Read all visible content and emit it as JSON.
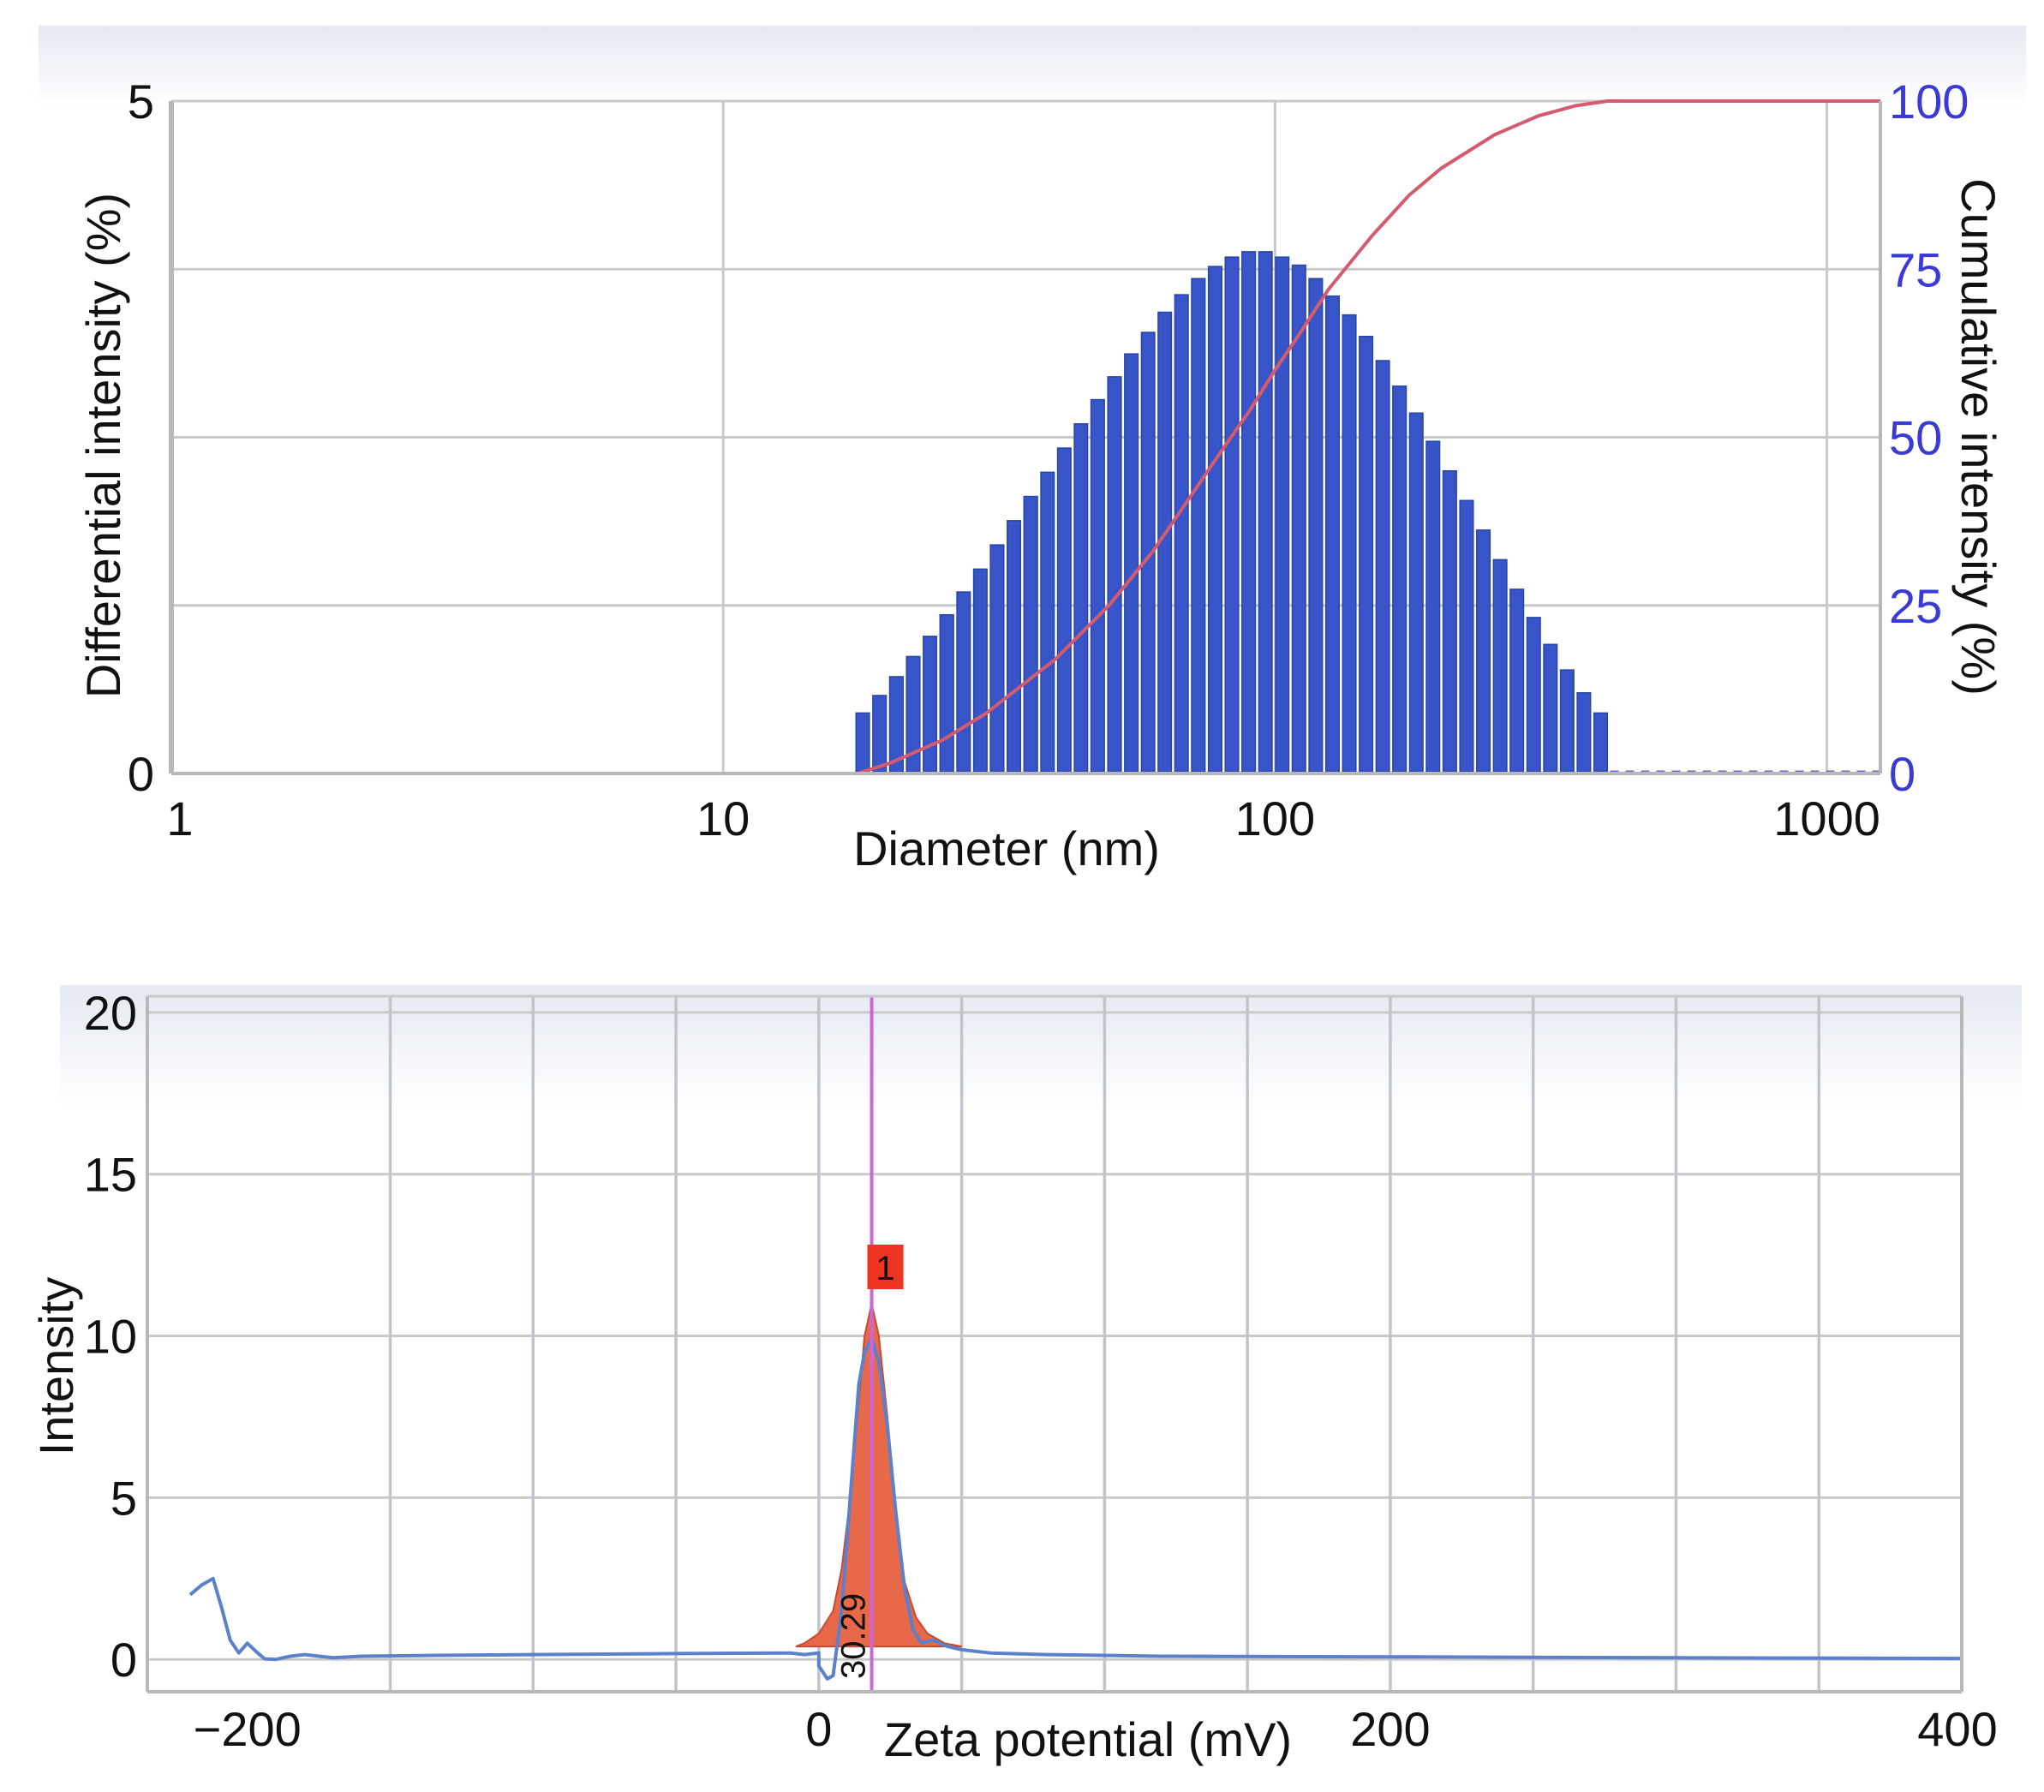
{
  "chart_data": [
    {
      "type": "bar",
      "xlabel": "Diameter (nm)",
      "ylabel": "Differential intensity (%)",
      "y2label": "Cumulative intensity (%)",
      "x_scale": "log",
      "xlim": [
        1,
        1250
      ],
      "ylim": [
        0,
        5
      ],
      "y2lim": [
        0,
        100
      ],
      "x_ticks": [
        "1",
        "10",
        "100",
        "1000"
      ],
      "x_tick_values": [
        1,
        10,
        100,
        1000
      ],
      "y_ticks": [
        "0",
        "5"
      ],
      "y_tick_values": [
        0,
        5
      ],
      "y_grid_values": [
        0,
        1.25,
        2.5,
        3.75,
        5
      ],
      "y2_ticks": [
        "0",
        "25",
        "50",
        "75",
        "100"
      ],
      "y2_tick_values": [
        0,
        25,
        50,
        75,
        100
      ],
      "grid": true,
      "bar_color": "#3755c8",
      "cumulative_color": "#d65a6e",
      "y2_tick_color": "#3a3ad6",
      "bars": {
        "x": [
          17.9,
          19.2,
          20.6,
          22.1,
          23.7,
          25.4,
          27.3,
          29.2,
          31.4,
          33.6,
          36.1,
          38.7,
          41.5,
          44.5,
          47.7,
          51.2,
          54.9,
          58.9,
          63.1,
          67.7,
          72.6,
          77.9,
          83.5,
          89.6,
          96.1,
          103.0,
          110.5,
          118.5,
          127.1,
          136.3,
          146.2,
          156.7,
          168.1,
          180.3,
          193.3,
          207.3,
          222.4,
          238.5,
          255.8,
          274.3,
          294.2,
          315.5,
          338.3,
          362.8,
          389.1
        ],
        "values": [
          0.45,
          0.58,
          0.72,
          0.87,
          1.02,
          1.18,
          1.35,
          1.52,
          1.7,
          1.88,
          2.06,
          2.24,
          2.42,
          2.6,
          2.78,
          2.95,
          3.12,
          3.28,
          3.43,
          3.56,
          3.68,
          3.77,
          3.84,
          3.88,
          3.88,
          3.84,
          3.78,
          3.68,
          3.55,
          3.41,
          3.25,
          3.07,
          2.88,
          2.68,
          2.47,
          2.25,
          2.03,
          1.81,
          1.59,
          1.37,
          1.16,
          0.96,
          0.77,
          0.6,
          0.45
        ]
      },
      "cumulative": {
        "x": [
          1,
          17.5,
          20,
          25,
          30,
          40,
          50,
          60,
          70,
          80,
          90,
          100,
          110,
          125,
          150,
          175,
          200,
          250,
          300,
          350,
          400,
          1250
        ],
        "values": [
          0,
          0,
          1.5,
          5,
          9,
          17,
          25,
          33,
          41,
          48,
          54,
          60,
          65,
          72,
          80,
          86,
          90,
          95,
          97.8,
          99.3,
          100,
          100
        ]
      }
    },
    {
      "type": "line",
      "xlabel": "Zeta potential (mV)",
      "ylabel": "Intensity",
      "xlim": [
        -235,
        400
      ],
      "ylim": [
        -1,
        20.5
      ],
      "x_ticks": [
        "−200",
        "0",
        "200",
        "400"
      ],
      "x_tick_values": [
        -200,
        0,
        200,
        400
      ],
      "x_grid_values": [
        -150,
        -100,
        -50,
        0,
        50,
        100,
        150,
        200,
        250,
        300,
        350
      ],
      "y_ticks": [
        "0",
        "5",
        "10",
        "15",
        "20"
      ],
      "y_tick_values": [
        0,
        5,
        10,
        15,
        20
      ],
      "grid": true,
      "line_color": "#5b80cc",
      "peak_fill_color": "#e8694a",
      "marker_line_color": "#cc66dd",
      "badge_color": "#ee3322",
      "peak_marker_x": 18.5,
      "peak_label": "1",
      "peak_value_label": "30.29",
      "series": [
        {
          "x": [
            -220,
            -216,
            -212,
            -209,
            -206,
            -203,
            -200,
            -197,
            -194,
            -190,
            -185,
            -180,
            -170,
            -160,
            -140,
            -100,
            -50,
            0,
            -10,
            -5,
            0,
            3,
            5,
            8,
            11,
            14,
            16,
            18.5,
            21,
            24,
            27,
            30,
            33,
            36,
            40,
            45,
            50,
            60,
            80,
            120,
            200,
            300,
            400
          ],
          "values": [
            2.0,
            2.3,
            2.5,
            1.6,
            0.6,
            0.2,
            0.5,
            0.25,
            0.02,
            0.0,
            0.1,
            0.15,
            0.05,
            0.1,
            0.12,
            0.15,
            0.18,
            0.2,
            0.2,
            0.15,
            -0.2,
            -0.6,
            -0.5,
            1.5,
            5.0,
            8.5,
            9.5,
            9.9,
            9.2,
            7.2,
            4.5,
            2.2,
            0.9,
            0.5,
            0.6,
            0.4,
            0.3,
            0.2,
            0.15,
            0.1,
            0.08,
            0.05,
            0.03
          ]
        }
      ],
      "peak_fill": {
        "x": [
          -8,
          -5,
          0,
          5,
          8,
          11,
          14,
          16,
          18.5,
          21,
          24,
          27,
          30,
          34,
          38,
          44,
          50
        ],
        "values": [
          0.4,
          0.5,
          0.8,
          1.5,
          2.8,
          5.0,
          8.0,
          10.0,
          11.0,
          10.0,
          7.5,
          4.5,
          2.4,
          1.3,
          0.8,
          0.5,
          0.4
        ]
      }
    }
  ]
}
